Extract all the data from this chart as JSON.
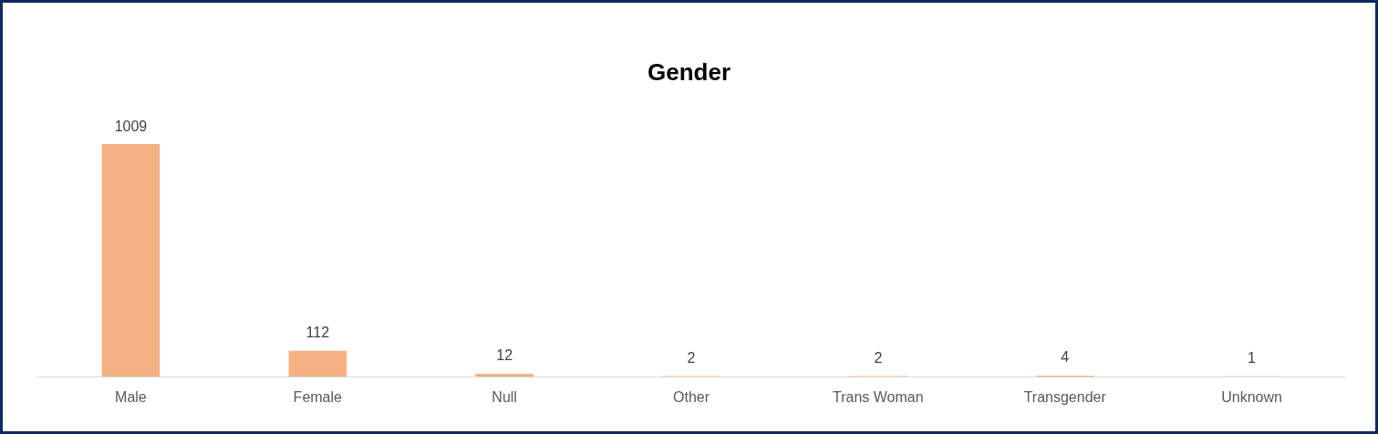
{
  "chart_data": {
    "type": "bar",
    "title": "Gender",
    "categories": [
      "Male",
      "Female",
      "Null",
      "Other",
      "Trans Woman",
      "Transgender",
      "Unknown"
    ],
    "values": [
      1009,
      112,
      12,
      2,
      2,
      4,
      1
    ],
    "color": "#f4b183",
    "data_labels": true,
    "tick_labels": "x"
  }
}
